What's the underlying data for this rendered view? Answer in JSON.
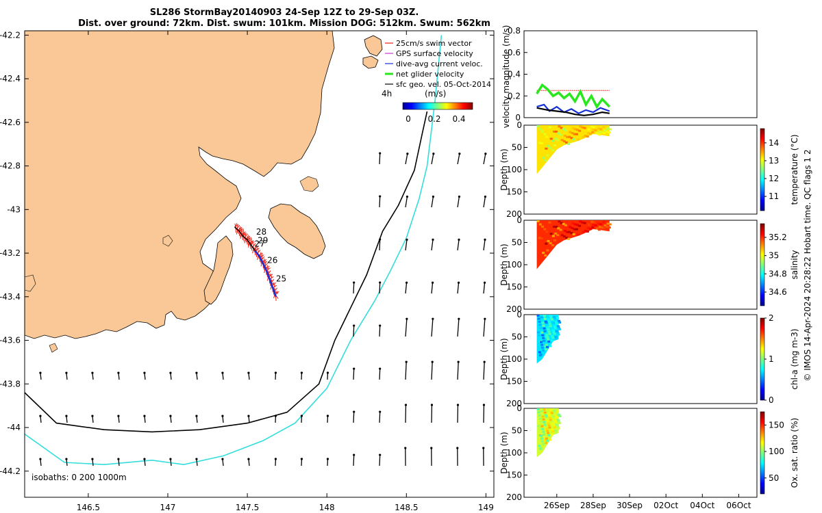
{
  "title": {
    "line1": "SL286 StormBay20140903 24-Sep 12Z to 29-Sep 03Z.",
    "line2": "Dist. over ground: 72km. Dist. swum: 101km. Mission DOG: 512km. Swum: 562km"
  },
  "credit": "© IMOS 14-Apr-2024 20:28:22 Hobart time. QC flags 1  2",
  "colors": {
    "land": "#f9c896",
    "track": "#ee1c10",
    "current": "#1530d8",
    "net": "#29e71e",
    "geo": "#000000",
    "isobath200": "#000000",
    "isobath1000": "#33dddd"
  },
  "chart_data": [
    {
      "type": "map",
      "xticks": [
        "146.5",
        "147",
        "147.5",
        "148",
        "148.5",
        "149"
      ],
      "xtick_values": [
        146.5,
        147,
        147.5,
        148,
        148.5,
        149
      ],
      "yticks": [
        "-42.2",
        "-42.4",
        "-42.6",
        "-42.8",
        "-43",
        "-43.2",
        "-43.4",
        "-43.6",
        "-43.8",
        "-44",
        "-44.2"
      ],
      "ytick_values": [
        -42.2,
        -42.4,
        -42.6,
        -42.8,
        -43,
        -43.2,
        -43.4,
        -43.6,
        -43.8,
        -44,
        -44.2
      ],
      "xlim": [
        146.1,
        149.05
      ],
      "ylim": [
        -44.32,
        -42.18
      ],
      "legend": [
        {
          "label": "25cm/s swim vector",
          "color": "#ee1c10"
        },
        {
          "label": "GPS surface velocity",
          "color": "#cc33cc"
        },
        {
          "label": "dive-avg current veloc.",
          "color": "#1530d8"
        },
        {
          "label": "net glider velocity",
          "color": "#29e71e"
        },
        {
          "label": "sfc geo. vel. 05-Oct-2014",
          "color": "#000000"
        }
      ],
      "colorbar": {
        "label": "(m/s)",
        "note": "4h",
        "ticks": [
          "0",
          "0.2",
          "0.4"
        ],
        "range": [
          0,
          0.5
        ]
      },
      "isobaths_label": "isobaths: 0   200  1000m",
      "day_labels": [
        {
          "text": "28",
          "lon": 147.555,
          "lat": -43.115
        },
        {
          "text": "29",
          "lon": 147.565,
          "lat": -43.155
        },
        {
          "text": "27",
          "lon": 147.545,
          "lat": -43.17
        },
        {
          "text": "26",
          "lon": 147.625,
          "lat": -43.245
        },
        {
          "text": "25",
          "lon": 147.68,
          "lat": -43.33
        }
      ],
      "track": [
        [
          147.42,
          -43.08
        ],
        [
          147.45,
          -43.1
        ],
        [
          147.47,
          -43.12
        ],
        [
          147.5,
          -43.14
        ],
        [
          147.52,
          -43.16
        ],
        [
          147.55,
          -43.19
        ],
        [
          147.58,
          -43.22
        ],
        [
          147.6,
          -43.25
        ],
        [
          147.62,
          -43.28
        ],
        [
          147.64,
          -43.32
        ],
        [
          147.66,
          -43.36
        ],
        [
          147.68,
          -43.4
        ]
      ],
      "isobath_200": [
        [
          146.1,
          -43.84
        ],
        [
          146.3,
          -43.98
        ],
        [
          146.6,
          -44.01
        ],
        [
          146.9,
          -44.02
        ],
        [
          147.2,
          -44.01
        ],
        [
          147.5,
          -43.98
        ],
        [
          147.75,
          -43.93
        ],
        [
          147.95,
          -43.8
        ],
        [
          148.05,
          -43.6
        ],
        [
          148.15,
          -43.45
        ],
        [
          148.25,
          -43.3
        ],
        [
          148.35,
          -43.1
        ],
        [
          148.45,
          -42.98
        ],
        [
          148.55,
          -42.82
        ],
        [
          148.6,
          -42.65
        ],
        [
          148.63,
          -42.55
        ]
      ],
      "isobath_1000": [
        [
          146.1,
          -44.03
        ],
        [
          146.35,
          -44.16
        ],
        [
          146.6,
          -44.17
        ],
        [
          146.9,
          -44.15
        ],
        [
          147.1,
          -44.17
        ],
        [
          147.35,
          -44.13
        ],
        [
          147.6,
          -44.06
        ],
        [
          147.8,
          -43.98
        ],
        [
          148.0,
          -43.82
        ],
        [
          148.15,
          -43.6
        ],
        [
          148.3,
          -43.42
        ],
        [
          148.4,
          -43.28
        ],
        [
          148.5,
          -43.13
        ],
        [
          148.58,
          -42.95
        ],
        [
          148.63,
          -42.8
        ],
        [
          148.68,
          -42.5
        ],
        [
          148.72,
          -42.2
        ]
      ]
    },
    {
      "type": "line",
      "ylabel": "velocity magnitude (m/s)",
      "yticks": [
        "0",
        "0.2",
        "0.4",
        "0.6",
        "0.8"
      ],
      "ylim": [
        0,
        0.8
      ],
      "xlim": [
        "24-Sep",
        "07-Oct"
      ],
      "series": [
        {
          "color": "#ee1c10",
          "x": [
            24.9,
            26,
            27,
            28,
            28.9
          ],
          "values": [
            0.25,
            0.25,
            0.25,
            0.25,
            0.25
          ]
        },
        {
          "color": "#29e71e",
          "x": [
            24.9,
            25.2,
            25.5,
            25.8,
            26.1,
            26.4,
            26.7,
            27,
            27.3,
            27.6,
            27.9,
            28.2,
            28.5,
            28.9
          ],
          "values": [
            0.22,
            0.3,
            0.26,
            0.2,
            0.23,
            0.18,
            0.22,
            0.15,
            0.24,
            0.12,
            0.2,
            0.1,
            0.17,
            0.1
          ]
        },
        {
          "color": "#1530d8",
          "x": [
            24.9,
            25.3,
            25.6,
            26,
            26.4,
            26.8,
            27.2,
            27.6,
            28,
            28.4,
            28.9
          ],
          "values": [
            0.1,
            0.12,
            0.06,
            0.1,
            0.05,
            0.08,
            0.04,
            0.07,
            0.05,
            0.09,
            0.06
          ]
        },
        {
          "color": "#000000",
          "x": [
            24.9,
            25.5,
            26,
            26.5,
            27,
            27.5,
            28,
            28.5,
            28.9
          ],
          "values": [
            0.09,
            0.07,
            0.06,
            0.05,
            0.03,
            0.02,
            0.03,
            0.05,
            0.04
          ]
        }
      ]
    },
    {
      "type": "heatmap",
      "ylabel": "Depth (m)",
      "yticks": [
        "0",
        "50",
        "100",
        "150",
        "200"
      ],
      "ylim": [
        0,
        200
      ],
      "colorbar": {
        "label": "temperature (°C)",
        "ticks": [
          "11",
          "12",
          "13",
          "14"
        ],
        "range": [
          10.2,
          14.8
        ]
      },
      "xrange": [
        24.9,
        28.9
      ],
      "depth_profile": [
        [
          24.9,
          110
        ],
        [
          25.2,
          95
        ],
        [
          25.6,
          75
        ],
        [
          26,
          55
        ],
        [
          26.4,
          45
        ],
        [
          26.8,
          40
        ],
        [
          27.2,
          35
        ],
        [
          27.6,
          28
        ],
        [
          28,
          20
        ],
        [
          28.4,
          22
        ],
        [
          28.9,
          25
        ]
      ],
      "mean_value": 13.2
    },
    {
      "type": "heatmap",
      "ylabel": "Depth (m)",
      "yticks": [
        "0",
        "50",
        "100",
        "150",
        "200"
      ],
      "ylim": [
        0,
        200
      ],
      "colorbar": {
        "label": "salinity",
        "ticks": [
          "34.6",
          "34.8",
          "35",
          "35.2"
        ],
        "range": [
          34.45,
          35.35
        ]
      },
      "xrange": [
        24.9,
        28.9
      ],
      "depth_profile": [
        [
          24.9,
          110
        ],
        [
          25.2,
          95
        ],
        [
          25.6,
          75
        ],
        [
          26,
          55
        ],
        [
          26.4,
          45
        ],
        [
          26.8,
          40
        ],
        [
          27.2,
          35
        ],
        [
          27.6,
          28
        ],
        [
          28,
          20
        ],
        [
          28.4,
          22
        ],
        [
          28.9,
          25
        ]
      ],
      "mean_value": 35.2
    },
    {
      "type": "heatmap",
      "ylabel": "Depth (m)",
      "yticks": [
        "0",
        "50",
        "100",
        "150",
        "200"
      ],
      "ylim": [
        0,
        200
      ],
      "colorbar": {
        "label": "chl-a (mg m-3)",
        "ticks": [
          "0",
          "1",
          "2"
        ],
        "range": [
          0,
          2
        ]
      },
      "xrange": [
        24.9,
        26.1
      ],
      "depth_profile": [
        [
          24.9,
          110
        ],
        [
          25.2,
          100
        ],
        [
          25.5,
          80
        ],
        [
          25.8,
          60
        ],
        [
          26.1,
          55
        ]
      ],
      "mean_value": 0.7
    },
    {
      "type": "heatmap",
      "ylabel": "Depth (m)",
      "yticks": [
        "0",
        "50",
        "100",
        "150",
        "200"
      ],
      "ylim": [
        0,
        200
      ],
      "colorbar": {
        "label": "Ox. sat. ratio (%)",
        "ticks": [
          "50",
          "100",
          "150"
        ],
        "range": [
          20,
          175
        ]
      },
      "xrange": [
        24.9,
        26.1
      ],
      "depth_profile": [
        [
          24.9,
          110
        ],
        [
          25.2,
          100
        ],
        [
          25.5,
          80
        ],
        [
          25.8,
          60
        ],
        [
          26.1,
          55
        ]
      ],
      "mean_value": 110,
      "xticks": [
        "26Sep",
        "28Sep",
        "30Sep",
        "02Oct",
        "04Oct",
        "06Oct"
      ],
      "xtick_values": [
        26,
        28,
        30,
        32,
        34,
        36
      ],
      "xlim": [
        24.2,
        37.0
      ]
    }
  ]
}
